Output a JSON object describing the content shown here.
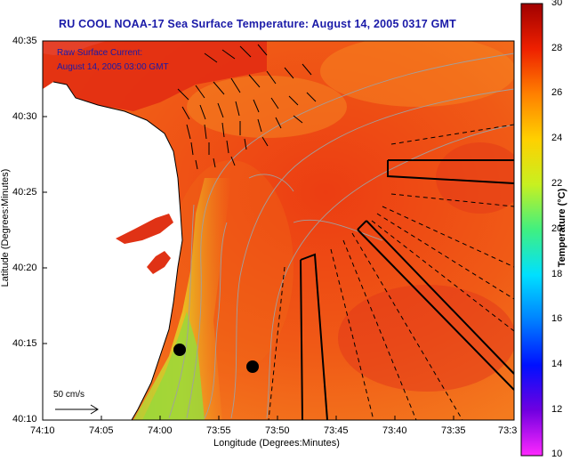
{
  "title": "RU COOL  NOAA-17  Sea Surface Temperature:  August 14, 2005 0317 GMT",
  "current_label_1": "Raw Surface Current:",
  "current_label_2": "August 14, 2005 03:00 GMT",
  "scale_label": "50 cm/s",
  "y_axis_title": "Latitude (Degrees:Minutes)",
  "x_axis_title": "Longitude (Degrees:Minutes)",
  "y_ticks": [
    "40:35",
    "40:30",
    "40:25",
    "40:20",
    "40:15",
    "40:10"
  ],
  "x_ticks": [
    "74:10",
    "74:05",
    "74:00",
    "73:55",
    "73:50",
    "73:45",
    "73:40",
    "73:35",
    "73:3"
  ],
  "colorbar_title": "Temperature (°C)",
  "colorbar_ticks": [
    "30",
    "28",
    "26",
    "24",
    "22",
    "20",
    "18",
    "16",
    "14",
    "12",
    "10"
  ],
  "colors": {
    "title": "#1a1aa8",
    "land": "#ffffff",
    "warm": "#e8401a",
    "cool": "#9ad83a"
  }
}
